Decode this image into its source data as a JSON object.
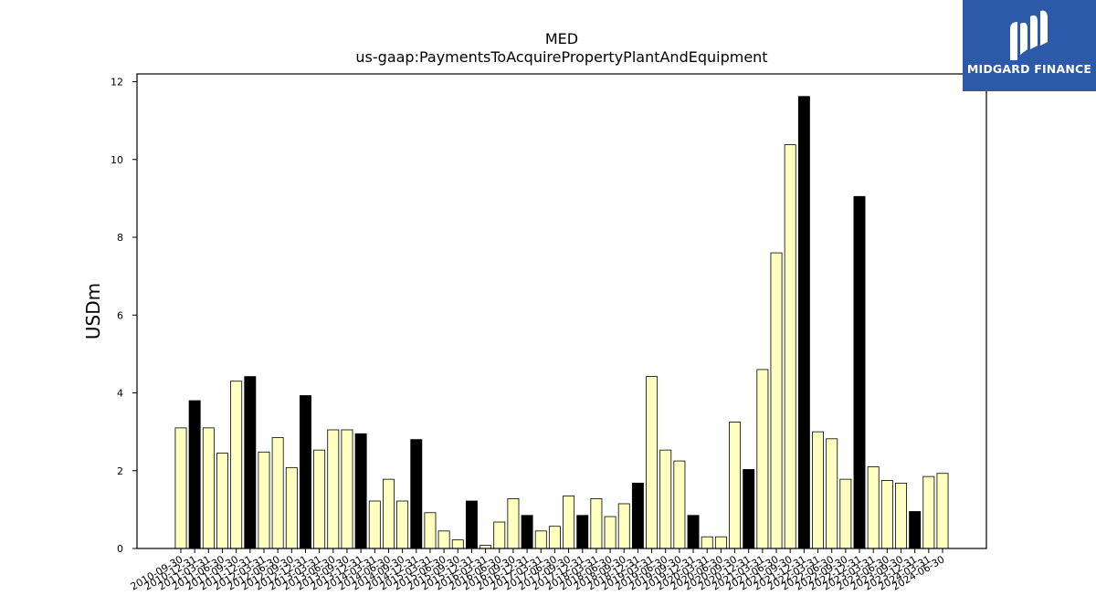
{
  "logo": {
    "text": "MIDGARD FINANCE"
  },
  "colors": {
    "bar_light": "#ffffc0",
    "bar_dark": "#000000",
    "axis": "#000000",
    "logo_bg": "#2d5aa8"
  },
  "chart_data": {
    "type": "bar",
    "title": "MED",
    "subtitle": "us-gaap:PaymentsToAcquirePropertyPlantAndEquipment",
    "ylabel": "USDm",
    "xlabel": "",
    "ylim": [
      0,
      12.2
    ],
    "yticks": [
      0,
      2,
      4,
      6,
      8,
      10,
      12
    ],
    "grid": false,
    "categories": [
      "2010-09-30",
      "2010-12-31",
      "2011-03-31",
      "2011-06-30",
      "2011-09-30",
      "2011-12-31",
      "2012-03-31",
      "2012-06-30",
      "2012-09-30",
      "2012-12-31",
      "2013-03-31",
      "2013-06-30",
      "2013-09-30",
      "2013-12-31",
      "2014-03-31",
      "2014-06-30",
      "2014-09-30",
      "2014-12-31",
      "2015-03-31",
      "2015-06-30",
      "2015-09-30",
      "2015-12-31",
      "2016-03-31",
      "2016-06-30",
      "2016-09-30",
      "2016-12-31",
      "2017-03-31",
      "2017-06-30",
      "2017-09-30",
      "2017-12-31",
      "2018-03-31",
      "2018-06-30",
      "2018-09-30",
      "2018-12-31",
      "2019-03-31",
      "2019-06-30",
      "2019-09-30",
      "2019-12-31",
      "2020-03-31",
      "2020-06-30",
      "2020-09-30",
      "2020-12-31",
      "2021-03-31",
      "2021-06-30",
      "2021-09-30",
      "2021-12-31",
      "2022-03-31",
      "2022-06-30",
      "2022-09-30",
      "2022-12-31",
      "2023-03-31",
      "2023-06-30",
      "2023-09-30",
      "2023-12-31",
      "2024-03-31",
      "2024-06-30"
    ],
    "values": [
      3.1,
      3.8,
      3.1,
      2.45,
      4.3,
      4.42,
      2.48,
      2.85,
      2.08,
      3.93,
      2.53,
      3.05,
      3.05,
      2.95,
      1.22,
      1.78,
      1.22,
      2.8,
      0.92,
      0.45,
      0.22,
      1.22,
      0.08,
      0.68,
      1.28,
      0.85,
      0.45,
      0.57,
      1.35,
      0.85,
      1.28,
      0.82,
      1.15,
      1.68,
      4.42,
      2.53,
      2.25,
      0.85,
      0.3,
      0.3,
      3.25,
      2.03,
      4.6,
      7.6,
      10.38,
      11.62,
      3.0,
      2.82,
      1.78,
      9.05,
      2.1,
      1.75,
      1.68,
      0.95,
      1.85,
      1.93
    ],
    "highlight": [
      false,
      true,
      false,
      false,
      false,
      true,
      false,
      false,
      false,
      true,
      false,
      false,
      false,
      true,
      false,
      false,
      false,
      true,
      false,
      false,
      false,
      true,
      false,
      false,
      false,
      true,
      false,
      false,
      false,
      true,
      false,
      false,
      false,
      true,
      false,
      false,
      false,
      true,
      false,
      false,
      false,
      true,
      false,
      false,
      false,
      true,
      false,
      false,
      false,
      true,
      false,
      false,
      false,
      true,
      false,
      false
    ]
  }
}
